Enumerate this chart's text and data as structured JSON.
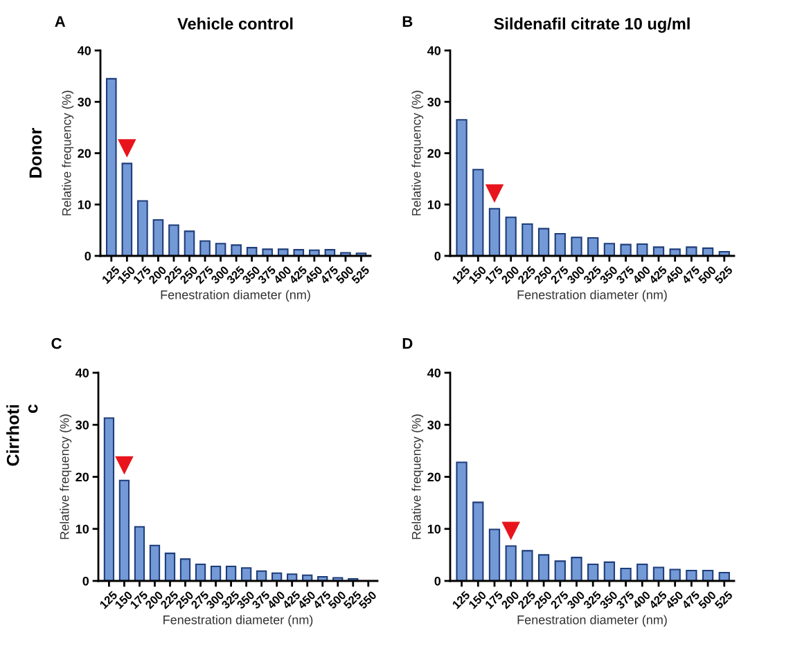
{
  "chart_data": [
    {
      "type": "bar",
      "title": "Vehicle control",
      "xlabel": "Fenestration diameter (nm)",
      "ylabel": "Relative frequency (%)",
      "categories": [
        "125",
        "150",
        "175",
        "200",
        "225",
        "250",
        "275",
        "300",
        "325",
        "350",
        "375",
        "400",
        "425",
        "450",
        "475",
        "500",
        "525"
      ],
      "values": [
        34.5,
        18,
        10.7,
        7,
        6,
        4.8,
        2.9,
        2.4,
        2.1,
        1.6,
        1.3,
        1.3,
        1.2,
        1.1,
        1.2,
        0.6,
        0.5
      ],
      "color": "#7399d6",
      "ylim": [
        0,
        40
      ],
      "yticks": [
        0,
        10,
        20,
        30,
        40
      ],
      "grid": false,
      "annotations": [
        "A",
        "Donor",
        {
          "text": "▼",
          "x": "150",
          "y": 18
        }
      ]
    },
    {
      "type": "bar",
      "title": "Sildenafil citrate 10 ug/ml",
      "xlabel": "Fenestration diameter (nm)",
      "ylabel": "Relative frequency (%)",
      "categories": [
        "125",
        "150",
        "175",
        "200",
        "225",
        "250",
        "275",
        "300",
        "325",
        "350",
        "375",
        "400",
        "425",
        "450",
        "475",
        "500",
        "525"
      ],
      "values": [
        26.5,
        16.8,
        9.2,
        7.5,
        6.2,
        5.3,
        4.3,
        3.6,
        3.5,
        2.4,
        2.2,
        2.3,
        1.7,
        1.3,
        1.7,
        1.5,
        0.8
      ],
      "color": "#7399d6",
      "ylim": [
        0,
        40
      ],
      "yticks": [
        0,
        10,
        20,
        30,
        40
      ],
      "grid": false,
      "annotations": [
        "B",
        {
          "text": "▼",
          "x": "175",
          "y": 9.2
        }
      ]
    },
    {
      "type": "bar",
      "xlabel": "Fenestration diameter (nm)",
      "ylabel": "Relative frequency (%)",
      "categories": [
        "125",
        "150",
        "175",
        "200",
        "225",
        "250",
        "275",
        "300",
        "325",
        "350",
        "375",
        "400",
        "425",
        "450",
        "475",
        "500",
        "525",
        "550"
      ],
      "values": [
        31.3,
        19.3,
        10.4,
        6.8,
        5.3,
        4.2,
        3.2,
        2.8,
        2.8,
        2.5,
        1.9,
        1.5,
        1.3,
        1.1,
        0.8,
        0.6,
        0.4,
        null
      ],
      "color": "#7399d6",
      "ylim": [
        0,
        40
      ],
      "yticks": [
        0,
        10,
        20,
        30,
        40
      ],
      "grid": false,
      "annotations": [
        "C",
        "Cirrhoti\nc",
        {
          "text": "▼",
          "x": "150",
          "y": 19.3
        }
      ]
    },
    {
      "type": "bar",
      "xlabel": "Fenestration diameter (nm)",
      "ylabel": "Relative frequency (%)",
      "categories": [
        "125",
        "150",
        "175",
        "200",
        "225",
        "250",
        "275",
        "300",
        "325",
        "350",
        "375",
        "400",
        "425",
        "450",
        "475",
        "500",
        "525"
      ],
      "values": [
        22.8,
        15.1,
        9.9,
        6.7,
        5.8,
        5.0,
        3.8,
        4.5,
        3.2,
        3.6,
        2.4,
        3.2,
        2.6,
        2.2,
        2.0,
        2.0,
        1.6
      ],
      "color": "#7399d6",
      "ylim": [
        0,
        40
      ],
      "yticks": [
        0,
        10,
        20,
        30,
        40
      ],
      "grid": false,
      "annotations": [
        "D",
        {
          "text": "▼",
          "x": "200",
          "y": 6.7
        }
      ]
    }
  ]
}
